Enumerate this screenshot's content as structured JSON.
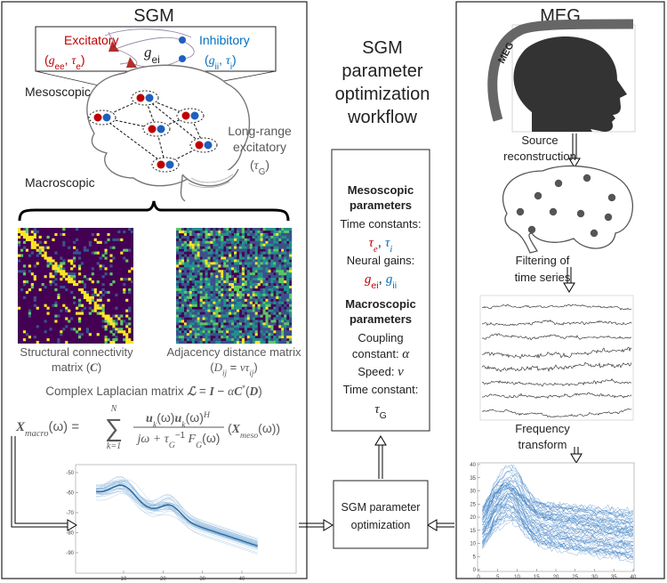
{
  "left_panel": {
    "title": "SGM",
    "excitatory": "Excitatory",
    "excitatory_params": [
      "(",
      "g",
      "ee",
      ", ",
      "τ",
      "e",
      ")"
    ],
    "coupling": [
      "g",
      "ei"
    ],
    "inhibitory": "Inhibitory",
    "inhibitory_params": [
      "(",
      "g",
      "ii",
      ", ",
      "τ",
      "i",
      ")"
    ],
    "mesoscopic": "Mesoscopic",
    "long_range": [
      "Long-range",
      "excitatory"
    ],
    "long_range_param": [
      "(",
      "τ",
      "G",
      ")"
    ],
    "macroscopic": "Macroscopic",
    "sc_caption": [
      "Structural connectivity",
      "matrix (",
      "C",
      ")"
    ],
    "ad_caption": [
      "Adjacency distance matrix",
      "(",
      "D",
      "ij",
      " = ",
      "vτ",
      "ij",
      ")"
    ],
    "laplacian": [
      "Complex Laplacian matrix ",
      "ℒ",
      " = ",
      "I",
      " − ",
      "α",
      "C",
      "*",
      "(",
      "D",
      ")"
    ],
    "formula": {
      "lhs": [
        "X",
        "macro",
        "(ω) ="
      ],
      "sum": "∑",
      "sum_lower": "k=1",
      "sum_upper": "N",
      "numerator": [
        "u",
        "k",
        "(ω)",
        "u",
        "k",
        "(ω)",
        "H"
      ],
      "denominator": [
        "jω + τ",
        "G",
        "−1",
        " F",
        "G",
        "(ω)"
      ],
      "rhs": [
        "(",
        "X",
        "meso",
        "(ω))"
      ]
    },
    "plot": {
      "yticks": [
        -50,
        -60,
        -70,
        -80,
        -90
      ],
      "xticks": [
        10,
        20,
        30,
        40
      ]
    }
  },
  "workflow": {
    "title": [
      "SGM",
      "parameter",
      "optimization",
      "workflow"
    ],
    "parameters": {
      "mesoscopic_heading": [
        "Mesoscopic",
        "parameters"
      ],
      "time_constants": "Time constants:",
      "time_constant_symbols": [
        "τ",
        "e",
        ", ",
        "τ",
        "i"
      ],
      "neural_gains": "Neural gains:",
      "gain_symbols": [
        "g",
        "ei",
        ", ",
        "g",
        "ii"
      ],
      "macroscopic_heading": [
        "Macroscopic",
        "parameters"
      ],
      "coupling": [
        "Coupling",
        "constant: ",
        "α"
      ],
      "speed": [
        "Speed: ",
        "v"
      ],
      "time_constant": "Time constant:",
      "time_constant_symbol": [
        "τ",
        "G"
      ]
    },
    "optimizer": [
      "SGM parameter",
      "optimization"
    ]
  },
  "right_panel": {
    "title": "MEG",
    "helmet_label": "MEG",
    "source": [
      "Source",
      "reconstruction"
    ],
    "filtering": [
      "Filtering of",
      "time series"
    ],
    "frequency": [
      "Frequency",
      "transform"
    ],
    "plot": {
      "yticks": [
        0,
        5,
        10,
        15,
        20,
        25,
        30,
        35,
        40
      ],
      "xticks": [
        0,
        5,
        10,
        15,
        20,
        25,
        30,
        35,
        40
      ]
    }
  }
}
